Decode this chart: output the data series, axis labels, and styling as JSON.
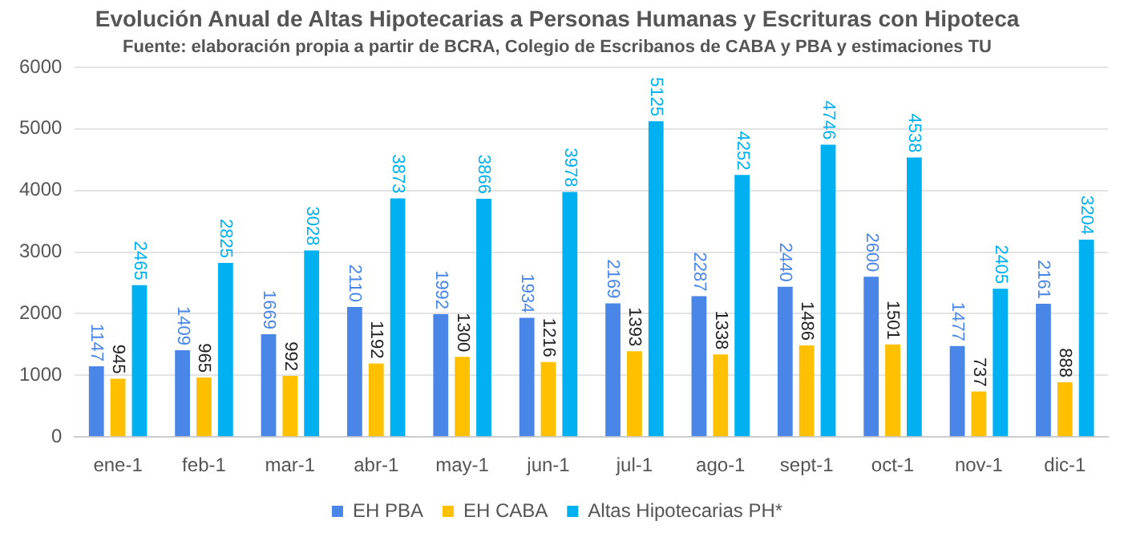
{
  "chart_data": {
    "type": "bar",
    "title": "Evolución Anual de Altas Hipotecarias a Personas Humanas y Escrituras con Hipoteca",
    "subtitle": "Fuente: elaboración propia a partir de BCRA, Colegio de Escribanos de CABA y PBA y estimaciones TU",
    "categories": [
      "ene-1",
      "feb-1",
      "mar-1",
      "abr-1",
      "may-1",
      "jun-1",
      "jul-1",
      "ago-1",
      "sept-1",
      "oct-1",
      "nov-1",
      "dic-1"
    ],
    "series": [
      {
        "name": "EH PBA",
        "color": "#4a86e8",
        "values": [
          1147,
          1409,
          1669,
          2110,
          1992,
          1934,
          2169,
          2287,
          2440,
          2600,
          1477,
          2161
        ]
      },
      {
        "name": "EH CABA",
        "color": "#ffc000",
        "values": [
          945,
          965,
          992,
          1192,
          1300,
          1216,
          1393,
          1338,
          1486,
          1501,
          737,
          888
        ]
      },
      {
        "name": "Altas Hipotecarias PH*",
        "color": "#00b0f0",
        "values": [
          2465,
          2825,
          3028,
          3873,
          3866,
          3978,
          5125,
          4252,
          4746,
          4538,
          2405,
          3204
        ]
      }
    ],
    "ylim": [
      0,
      6000
    ],
    "yticks": [
      0,
      1000,
      2000,
      3000,
      4000,
      5000,
      6000
    ],
    "grid": "y",
    "legend": "bottom",
    "data_labels": true
  }
}
